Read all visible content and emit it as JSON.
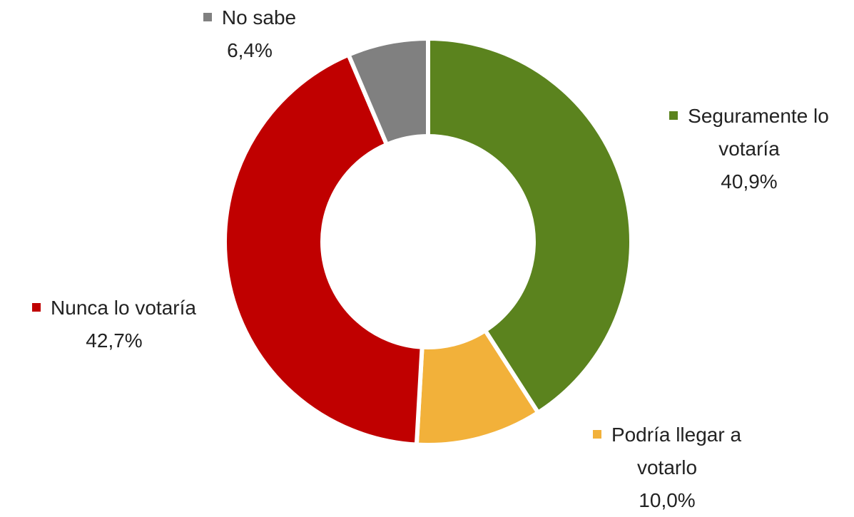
{
  "chart_data": {
    "type": "donut",
    "categories": [
      "Seguramente lo votaría",
      "Podría llegar a votarlo",
      "Nunca lo votaría",
      "No sabe"
    ],
    "values": [
      40.9,
      10.0,
      42.7,
      6.4
    ],
    "value_labels": [
      "40,9%",
      "10,0%",
      "42,7%",
      "6,4%"
    ],
    "colors": [
      "#5b831e",
      "#f2b13a",
      "#c00000",
      "#808080"
    ]
  }
}
